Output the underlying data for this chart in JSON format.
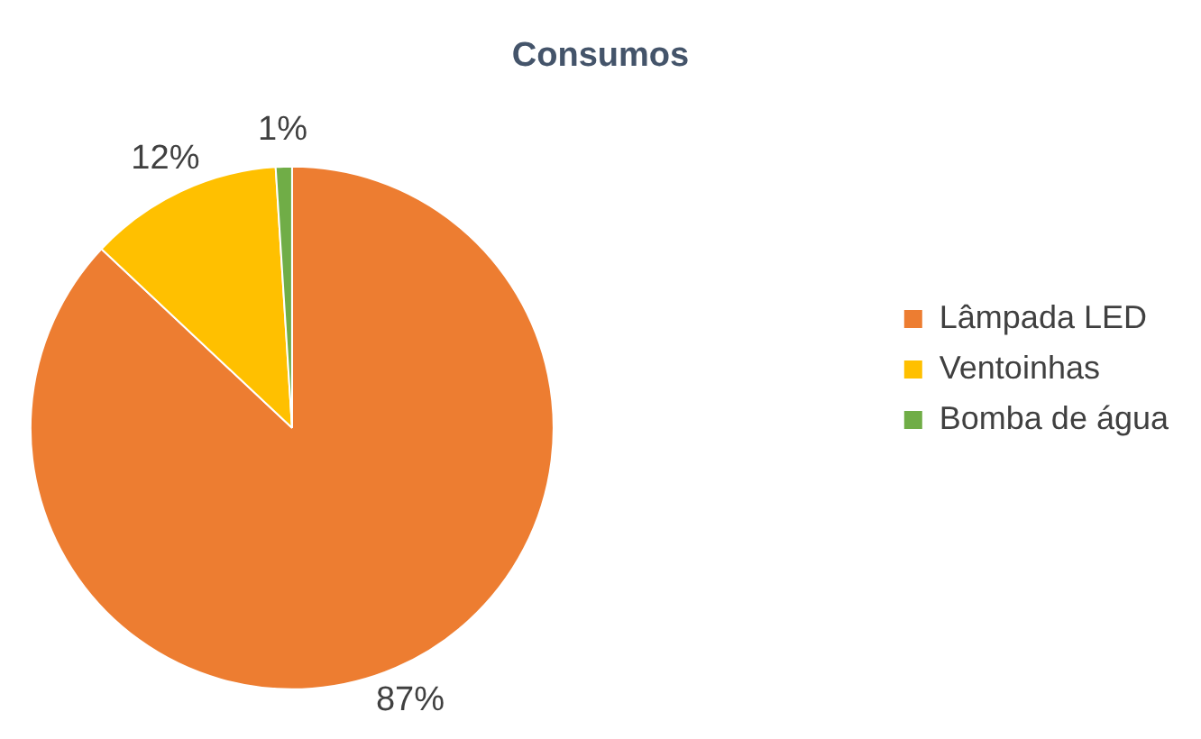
{
  "chart_data": {
    "type": "pie",
    "title": "Consumos",
    "categories": [
      "Lâmpada LED",
      "Ventoinhas",
      "Bomba de água"
    ],
    "values": [
      87,
      12,
      1
    ],
    "colors": [
      "#ed7d31",
      "#ffc000",
      "#70ad47"
    ],
    "value_labels": [
      "87%",
      "12%",
      "1%"
    ],
    "legend": "right"
  }
}
